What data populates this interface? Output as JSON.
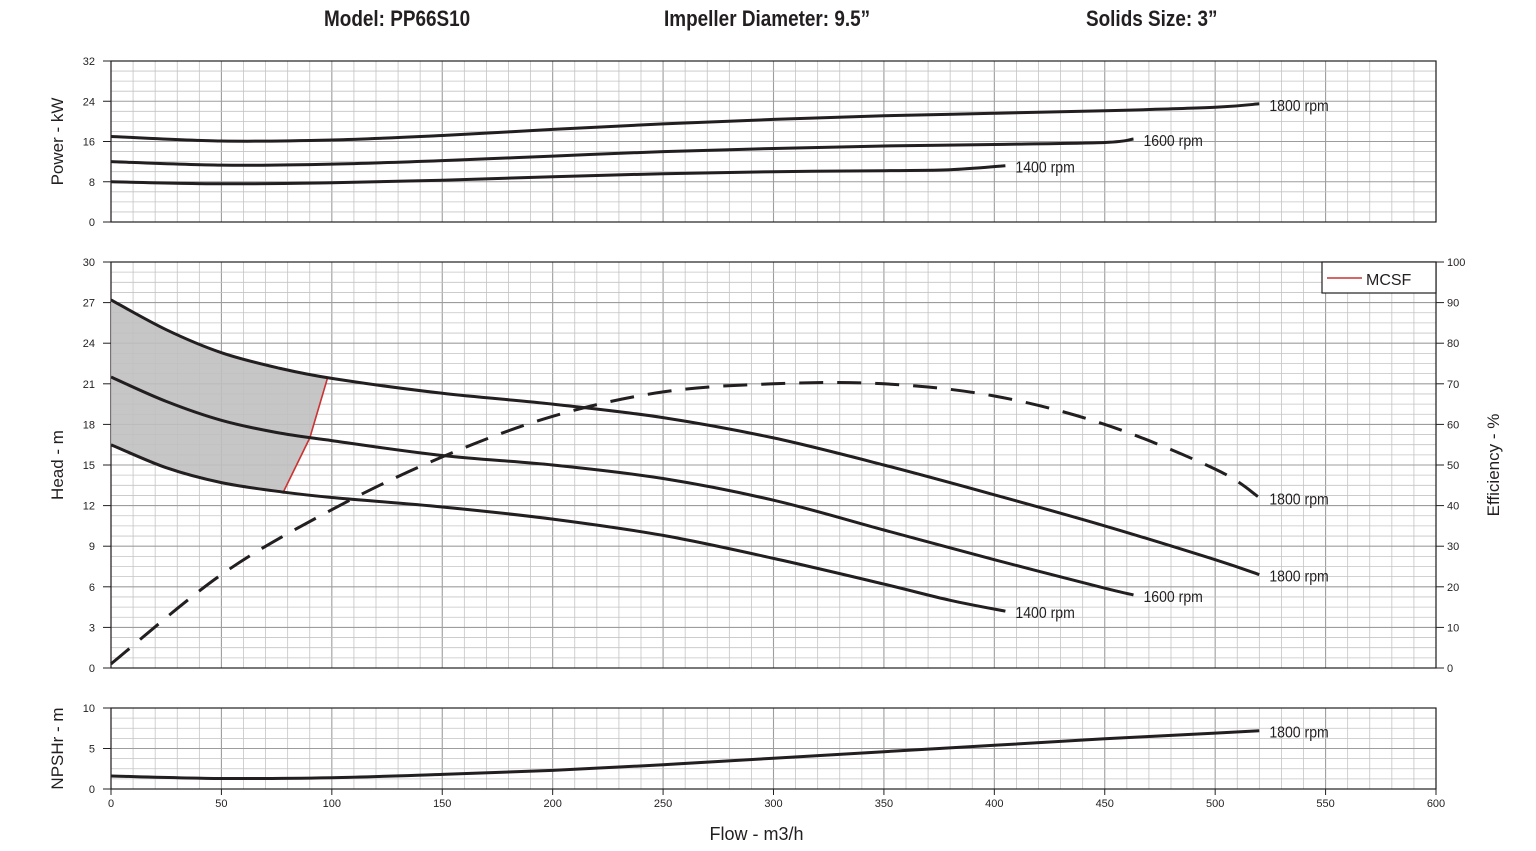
{
  "header": {
    "model": "Model: PP66S10",
    "impeller": "Impeller Diameter: 9.5”",
    "solids": "Solids Size: 3”"
  },
  "colors": {
    "curve": "#231f20",
    "grid_major": "#9d9d9d",
    "grid_minor": "#c4c4c4",
    "mcsf_line": "#cc3333",
    "mcsf_fill": "#c0c0c0"
  },
  "chart_data": [
    {
      "type": "line",
      "panel": "power",
      "ylabel": "Power - kW",
      "ylim": [
        0,
        32
      ],
      "yticks": [
        0,
        8,
        16,
        24,
        32
      ],
      "xlim": [
        0,
        600
      ],
      "grid": true,
      "series": [
        {
          "name": "1800 rpm",
          "x": [
            0,
            50,
            100,
            150,
            200,
            250,
            300,
            350,
            400,
            450,
            500,
            520
          ],
          "values": [
            17.0,
            16.1,
            16.3,
            17.2,
            18.4,
            19.5,
            20.4,
            21.1,
            21.6,
            22.1,
            22.8,
            23.5
          ]
        },
        {
          "name": "1600 rpm",
          "x": [
            0,
            50,
            100,
            150,
            200,
            250,
            300,
            350,
            400,
            450,
            463
          ],
          "values": [
            12.0,
            11.3,
            11.5,
            12.2,
            13.1,
            14.0,
            14.6,
            15.1,
            15.4,
            15.8,
            16.5
          ]
        },
        {
          "name": "1400 rpm",
          "x": [
            0,
            50,
            100,
            150,
            200,
            250,
            300,
            350,
            380,
            405
          ],
          "values": [
            8.0,
            7.6,
            7.8,
            8.3,
            9.0,
            9.6,
            10.0,
            10.2,
            10.4,
            11.2
          ]
        }
      ]
    },
    {
      "type": "line",
      "panel": "head",
      "ylabel": "Head - m",
      "y2label": "Efficiency - %",
      "ylim": [
        0,
        30
      ],
      "yticks": [
        0,
        3,
        6,
        9,
        12,
        15,
        18,
        21,
        24,
        27,
        30
      ],
      "y2lim": [
        0,
        100
      ],
      "y2ticks": [
        0,
        10,
        20,
        30,
        40,
        50,
        60,
        70,
        80,
        90,
        100
      ],
      "xlim": [
        0,
        600
      ],
      "grid": true,
      "legend": {
        "label": "MCSF",
        "position": "top-right"
      },
      "series": [
        {
          "name": "1800 rpm",
          "x": [
            0,
            25,
            50,
            75,
            100,
            150,
            200,
            250,
            300,
            350,
            400,
            450,
            500,
            520
          ],
          "values": [
            27.2,
            25.0,
            23.3,
            22.2,
            21.4,
            20.3,
            19.5,
            18.5,
            17.0,
            15.0,
            12.8,
            10.5,
            8.0,
            6.9
          ]
        },
        {
          "name": "1600 rpm",
          "x": [
            0,
            25,
            50,
            75,
            100,
            150,
            200,
            250,
            300,
            350,
            400,
            450,
            463
          ],
          "values": [
            21.5,
            19.7,
            18.3,
            17.4,
            16.8,
            15.7,
            15.0,
            14.0,
            12.4,
            10.2,
            8.0,
            5.9,
            5.4
          ]
        },
        {
          "name": "1400 rpm",
          "x": [
            0,
            25,
            50,
            78,
            100,
            150,
            200,
            250,
            300,
            350,
            380,
            405
          ],
          "values": [
            16.5,
            14.8,
            13.7,
            13.0,
            12.6,
            11.9,
            11.0,
            9.8,
            8.1,
            6.2,
            5.0,
            4.2
          ]
        },
        {
          "name": "1800 rpm",
          "axis": "efficiency",
          "dash": true,
          "x": [
            0,
            50,
            100,
            150,
            200,
            250,
            300,
            350,
            400,
            450,
            500,
            520
          ],
          "values": [
            1,
            23,
            39,
            52,
            62,
            68,
            70,
            70,
            67,
            60,
            49,
            42
          ]
        }
      ],
      "mcsf": {
        "x": [
          98,
          90,
          78
        ],
        "values": [
          21.4,
          17.0,
          13.0
        ]
      }
    },
    {
      "type": "line",
      "panel": "npshr",
      "ylabel": "NPSHr - m",
      "xlabel": "Flow - m3/h",
      "ylim": [
        0,
        10
      ],
      "yticks": [
        0,
        5,
        10
      ],
      "xlim": [
        0,
        600
      ],
      "xticks": [
        0,
        50,
        100,
        150,
        200,
        250,
        300,
        350,
        400,
        450,
        500,
        550,
        600
      ],
      "grid": true,
      "series": [
        {
          "name": "1800 rpm",
          "x": [
            0,
            50,
            100,
            150,
            200,
            250,
            300,
            350,
            400,
            450,
            500,
            520
          ],
          "values": [
            1.6,
            1.3,
            1.4,
            1.8,
            2.3,
            3.0,
            3.8,
            4.6,
            5.4,
            6.2,
            6.9,
            7.2
          ]
        }
      ]
    }
  ]
}
